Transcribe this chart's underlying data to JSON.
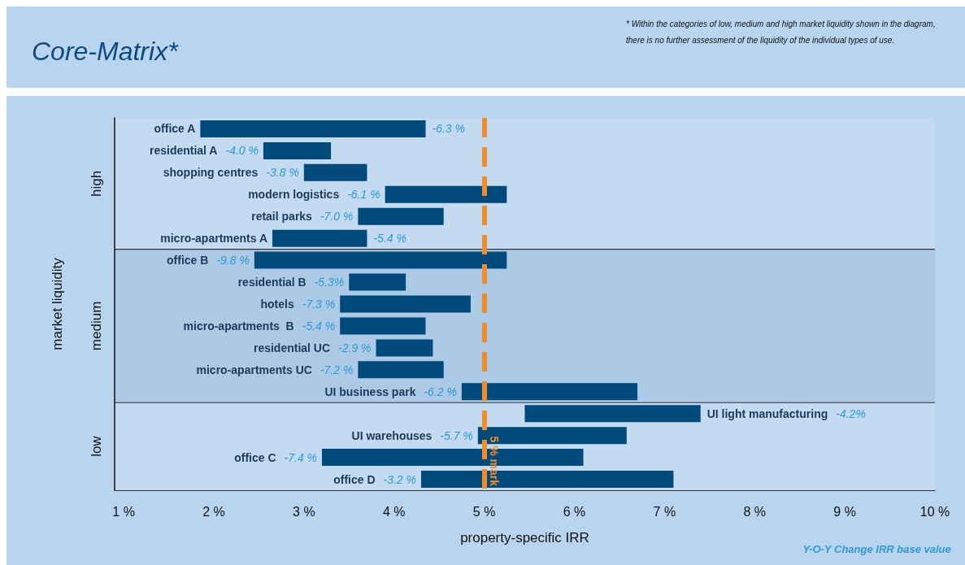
{
  "chart_data": {
    "type": "bar",
    "orientation": "horizontal",
    "title": "Core-Matrix*",
    "xlabel": "property-specific IRR",
    "ylabel": "market liquidity",
    "categories": [
      "office A",
      "residential A",
      "shopping centres",
      "modern logistics",
      "retail parks",
      "micro-apartments A",
      "office B",
      "residential B",
      "hotels",
      "micro-apartments  B",
      "residential UC",
      "micro-apartments UC",
      "UI business park",
      "UI light manufacturing",
      "UI warehouses",
      "office C",
      "office D"
    ],
    "base": [
      1.85,
      2.55,
      3.0,
      3.9,
      3.6,
      2.65,
      2.45,
      3.5,
      3.4,
      3.4,
      3.8,
      3.6,
      4.75,
      5.45,
      4.93,
      3.2,
      4.3
    ],
    "values": [
      2.5,
      0.75,
      0.7,
      1.35,
      0.95,
      1.05,
      2.8,
      0.63,
      1.45,
      0.95,
      0.63,
      0.95,
      1.95,
      1.95,
      1.65,
      2.9,
      2.8
    ],
    "color": "#004a7c",
    "xlim": [
      0.9,
      10
    ],
    "xticks": [
      {
        "value": 1,
        "label": "1 %"
      },
      {
        "value": 2,
        "label": "2 %"
      },
      {
        "value": 3,
        "label": "3 %"
      },
      {
        "value": 4,
        "label": "4 %"
      },
      {
        "value": 5,
        "label": "5 %"
      },
      {
        "value": 6,
        "label": "6 %"
      },
      {
        "value": 7,
        "label": "7 %"
      },
      {
        "value": 8,
        "label": "8 %"
      },
      {
        "value": 9,
        "label": "9 %"
      },
      {
        "value": 10,
        "label": "10 %"
      }
    ],
    "ref_lines": [
      {
        "axis": "x",
        "value": 5,
        "label": "5 % mark",
        "color": "#f28c28",
        "line_style": "dashed"
      }
    ],
    "bands": [
      {
        "axis": "y",
        "from": "office A",
        "to": "micro-apartments A",
        "label": "high",
        "color": "#c3daf0"
      },
      {
        "axis": "y",
        "from": "office B",
        "to": "UI business park",
        "label": "medium",
        "color": "#acc9e6"
      },
      {
        "axis": "y",
        "from": "UI light manufacturing",
        "to": "office D",
        "label": "low",
        "color": "#c3daf0"
      }
    ],
    "annotations": [
      "* Within the categories of low, medium and high market liquidity shown in the diagram, there is no further assessment of the liquidity of the individual types of use.",
      "Y-O-Y Change IRR base value",
      "-6.3 %",
      "-4.0 %",
      "-3.8 %",
      "-6.1 %",
      "-7.0 %",
      "-5.4 %",
      "-9.8 %",
      "-5.3%",
      "-7.3 %",
      "-5.4 %",
      "-2.9 %",
      "-7.2 %",
      "-6.2 %",
      "-4.2%",
      "-5.7 %",
      "-7.4 %",
      "-3.2 %"
    ],
    "grid": false
  }
}
